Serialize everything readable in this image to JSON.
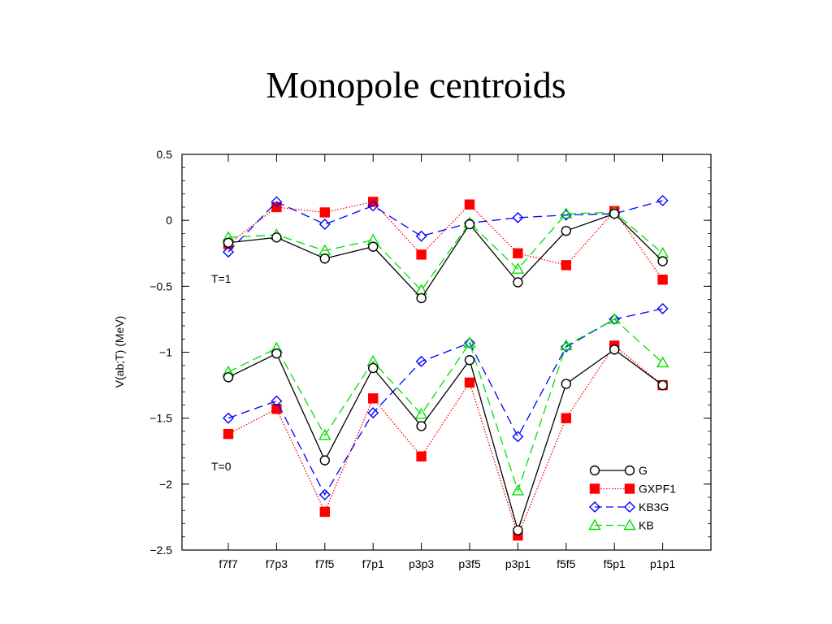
{
  "slide": {
    "title": "Monopole centroids"
  },
  "chart_data": {
    "type": "line",
    "title": "",
    "xlabel": "",
    "ylabel": "V(ab;T)  (MeV)",
    "ylim": [
      -2.5,
      0.5
    ],
    "yticks": [
      0.5,
      0,
      -0.5,
      -1,
      -1.5,
      -2,
      -2.5
    ],
    "ytick_labels": [
      "0.5",
      "0",
      "−0.5",
      "−1",
      "−1.5",
      "−2",
      "−2.5"
    ],
    "categories": [
      "f7f7",
      "f7p3",
      "f7f5",
      "f7p1",
      "p3p3",
      "p3f5",
      "p3p1",
      "f5f5",
      "f5p1",
      "p1p1"
    ],
    "grid": false,
    "legend_position": "bottom-right",
    "annotations": [
      "T=1",
      "T=0"
    ],
    "series": [
      {
        "name": "G",
        "color": "#000000",
        "marker": "circle",
        "dash": "solid",
        "group": "T=1",
        "values": [
          -0.17,
          -0.13,
          -0.29,
          -0.2,
          -0.59,
          -0.03,
          -0.47,
          -0.08,
          0.05,
          -0.31
        ]
      },
      {
        "name": "GXPF1",
        "color": "#ff0000",
        "marker": "square",
        "dash": "dotted",
        "group": "T=1",
        "values": [
          -0.18,
          0.1,
          0.06,
          0.14,
          -0.26,
          0.12,
          -0.25,
          -0.34,
          0.07,
          -0.45
        ]
      },
      {
        "name": "KB3G",
        "color": "#0000ff",
        "marker": "diamond",
        "dash": "dashed",
        "group": "T=1",
        "values": [
          -0.24,
          0.14,
          -0.03,
          0.11,
          -0.12,
          -0.02,
          0.02,
          0.04,
          0.05,
          0.15
        ]
      },
      {
        "name": "KB",
        "color": "#00e000",
        "marker": "triangle",
        "dash": "dashed",
        "group": "T=1",
        "values": [
          -0.13,
          -0.11,
          -0.23,
          -0.15,
          -0.53,
          -0.02,
          -0.37,
          0.05,
          0.06,
          -0.25
        ]
      },
      {
        "name": "G",
        "color": "#000000",
        "marker": "circle",
        "dash": "solid",
        "group": "T=0",
        "values": [
          -1.19,
          -1.01,
          -1.82,
          -1.12,
          -1.56,
          -1.06,
          -2.35,
          -1.24,
          -0.98,
          -1.25
        ]
      },
      {
        "name": "GXPF1",
        "color": "#ff0000",
        "marker": "square",
        "dash": "dotted",
        "group": "T=0",
        "values": [
          -1.62,
          -1.43,
          -2.21,
          -1.35,
          -1.79,
          -1.23,
          -2.39,
          -1.5,
          -0.95,
          -1.25
        ]
      },
      {
        "name": "KB3G",
        "color": "#0000ff",
        "marker": "diamond",
        "dash": "dashed",
        "group": "T=0",
        "values": [
          -1.5,
          -1.37,
          -2.08,
          -1.46,
          -1.07,
          -0.93,
          -1.64,
          -0.96,
          -0.75,
          -0.67
        ]
      },
      {
        "name": "KB",
        "color": "#00e000",
        "marker": "triangle",
        "dash": "dashed",
        "group": "T=0",
        "values": [
          -1.15,
          -0.97,
          -1.63,
          -1.07,
          -1.47,
          -0.93,
          -2.05,
          -0.95,
          -0.75,
          -1.08
        ]
      }
    ],
    "legend": [
      {
        "label": "G",
        "color": "#000000",
        "marker": "circle",
        "dash": "solid"
      },
      {
        "label": "GXPF1",
        "color": "#ff0000",
        "marker": "square",
        "dash": "dotted"
      },
      {
        "label": "KB3G",
        "color": "#0000ff",
        "marker": "diamond",
        "dash": "dashed"
      },
      {
        "label": "KB",
        "color": "#00e000",
        "marker": "triangle",
        "dash": "dashed"
      }
    ]
  }
}
